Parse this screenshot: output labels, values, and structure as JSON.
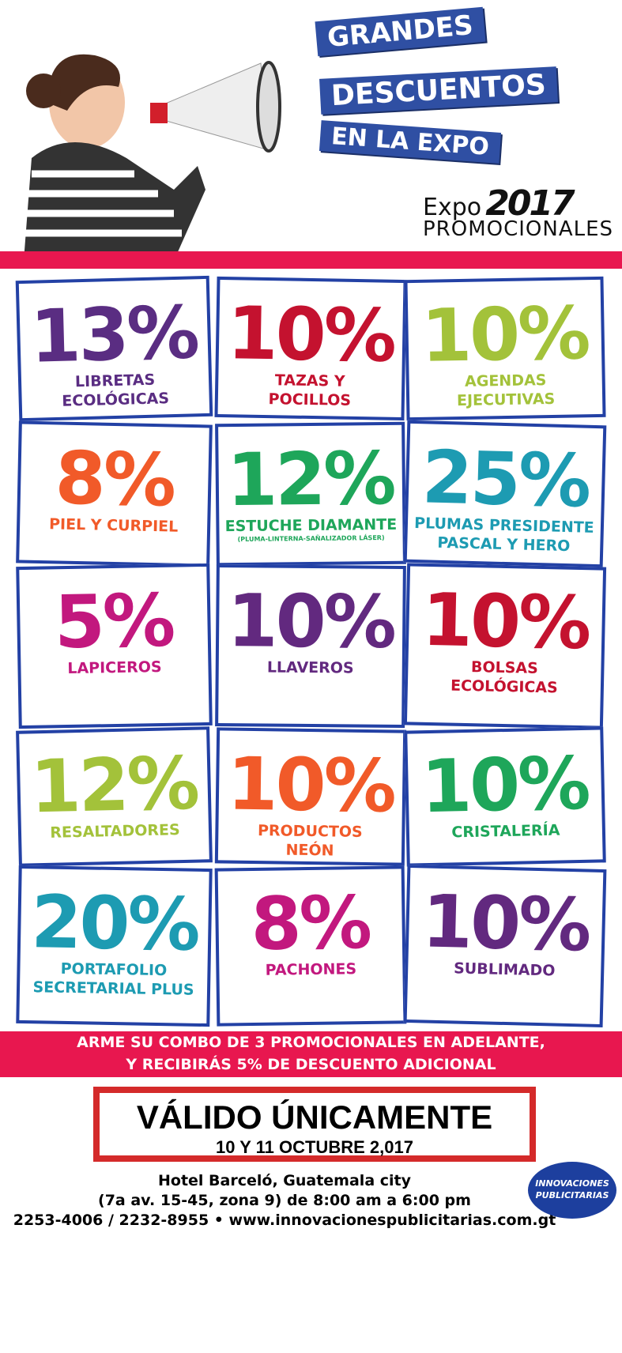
{
  "header": {
    "title": [
      "GRANDES",
      "DESCUENTOS",
      "EN LA EXPO"
    ],
    "expo_logo": {
      "word": "Expo",
      "year": "2017",
      "name": "PROMOCIONALES"
    }
  },
  "tiles": [
    {
      "percent": "13%",
      "label": [
        "LIBRETAS",
        "ECOLÓGICAS"
      ],
      "color": "#5a2d82"
    },
    {
      "percent": "10%",
      "label": [
        "TAZAS Y",
        "POCILLOS"
      ],
      "color": "#c4122f"
    },
    {
      "percent": "10%",
      "label": [
        "AGENDAS",
        "EJECUTIVAS"
      ],
      "color": "#a3c23a"
    },
    {
      "percent": "8%",
      "label": [
        "PIEL Y CURPIEL"
      ],
      "color": "#f15a29"
    },
    {
      "percent": "12%",
      "label": [
        "ESTUCHE DIAMANTE"
      ],
      "note": "(PLUMA-LINTERNA-SAÑALIZADOR LÁSER)",
      "color": "#1ea65a"
    },
    {
      "percent": "25%",
      "label": [
        "PLUMAS PRESIDENTE",
        "PASCAL Y HERO"
      ],
      "color": "#1d9bb2"
    },
    {
      "percent": "5%",
      "label": [
        "LAPICEROS"
      ],
      "color": "#c2187e"
    },
    {
      "percent": "10%",
      "label": [
        "LLAVEROS"
      ],
      "color": "#62297f"
    },
    {
      "percent": "10%",
      "label": [
        "BOLSAS",
        "ECOLÓGICAS"
      ],
      "color": "#c4122f"
    },
    {
      "percent": "12%",
      "label": [
        "RESALTADORES"
      ],
      "color": "#a3c23a"
    },
    {
      "percent": "10%",
      "label": [
        "PRODUCTOS",
        "NEÓN"
      ],
      "color": "#f15a29"
    },
    {
      "percent": "10%",
      "label": [
        "CRISTALERÍA"
      ],
      "color": "#1ea65a"
    },
    {
      "percent": "20%",
      "label": [
        "PORTAFOLIO",
        "SECRETARIAL PLUS"
      ],
      "color": "#1d9bb2"
    },
    {
      "percent": "8%",
      "label": [
        "PACHONES"
      ],
      "color": "#c2187e"
    },
    {
      "percent": "10%",
      "label": [
        "SUBLIMADO"
      ],
      "color": "#62297f"
    }
  ],
  "combo": [
    "ARME SU COMBO DE 3 PROMOCIONALES EN ADELANTE,",
    "Y RECIBIRÁS 5% DE DESCUENTO ADICIONAL"
  ],
  "validity": {
    "title": "VÁLIDO ÚNICAMENTE",
    "dates": "10 Y 11 OCTUBRE 2,017"
  },
  "contact": [
    "Hotel Barceló, Guatemala city",
    "(7a av. 15-45, zona 9) de 8:00 am a 6:00 pm",
    "2253-4006 / 2232-8955 • www.innovacionespublicitarias.com.gt"
  ],
  "company_logo": [
    "INNOVACIONES",
    "PUBLICITARIAS"
  ]
}
